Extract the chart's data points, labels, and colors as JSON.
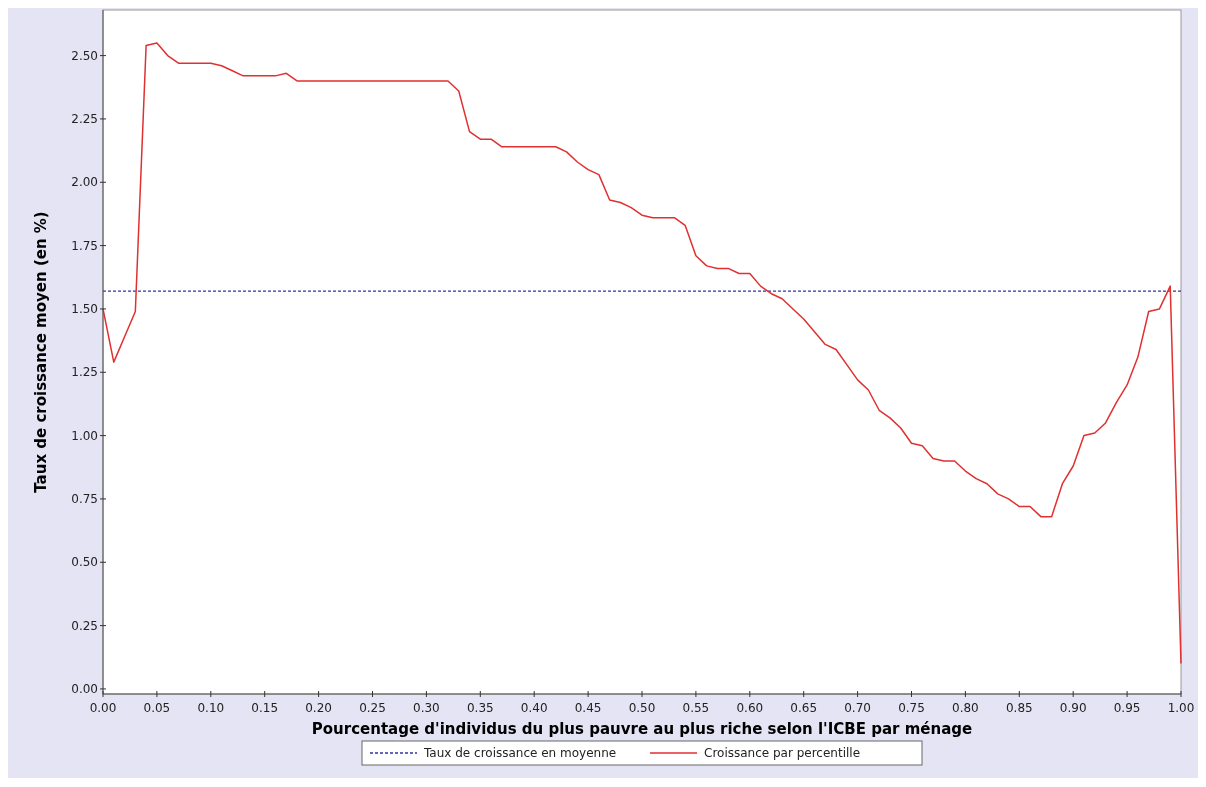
{
  "chart_data": {
    "type": "line",
    "xlabel": "Pourcentage d'individus du plus pauvre au plus riche selon l'ICBE par ménage",
    "ylabel": "Taux de croissance moyen (en %)",
    "x": [
      0,
      0.01,
      0.02,
      0.03,
      0.04,
      0.05,
      0.06,
      0.07,
      0.08,
      0.09,
      0.1,
      0.11,
      0.12,
      0.13,
      0.14,
      0.15,
      0.16,
      0.17,
      0.18,
      0.19,
      0.2,
      0.21,
      0.22,
      0.23,
      0.24,
      0.25,
      0.26,
      0.27,
      0.28,
      0.29,
      0.3,
      0.31,
      0.32,
      0.33,
      0.34,
      0.35,
      0.36,
      0.37,
      0.38,
      0.39,
      0.4,
      0.41,
      0.42,
      0.43,
      0.44,
      0.45,
      0.46,
      0.47,
      0.48,
      0.49,
      0.5,
      0.51,
      0.52,
      0.53,
      0.54,
      0.55,
      0.56,
      0.57,
      0.58,
      0.59,
      0.6,
      0.61,
      0.62,
      0.63,
      0.64,
      0.65,
      0.66,
      0.67,
      0.68,
      0.69,
      0.7,
      0.71,
      0.72,
      0.73,
      0.74,
      0.75,
      0.76,
      0.77,
      0.78,
      0.79,
      0.8,
      0.81,
      0.82,
      0.83,
      0.84,
      0.85,
      0.86,
      0.87,
      0.88,
      0.89,
      0.9,
      0.91,
      0.92,
      0.93,
      0.94,
      0.95,
      0.96,
      0.97,
      0.98,
      0.99,
      1
    ],
    "series": [
      {
        "name": "Croissance par percentille",
        "color": "#e03030",
        "values": [
          1.5,
          1.29,
          1.39,
          1.49,
          2.54,
          2.55,
          2.5,
          2.47,
          2.47,
          2.47,
          2.47,
          2.46,
          2.44,
          2.42,
          2.42,
          2.42,
          2.42,
          2.43,
          2.4,
          2.4,
          2.4,
          2.4,
          2.4,
          2.4,
          2.4,
          2.4,
          2.4,
          2.4,
          2.4,
          2.4,
          2.4,
          2.4,
          2.4,
          2.36,
          2.2,
          2.17,
          2.17,
          2.14,
          2.14,
          2.14,
          2.14,
          2.14,
          2.14,
          2.12,
          2.08,
          2.05,
          2.03,
          1.93,
          1.92,
          1.9,
          1.87,
          1.86,
          1.86,
          1.86,
          1.83,
          1.71,
          1.67,
          1.66,
          1.66,
          1.64,
          1.64,
          1.59,
          1.56,
          1.54,
          1.5,
          1.46,
          1.41,
          1.36,
          1.34,
          1.28,
          1.22,
          1.18,
          1.1,
          1.07,
          1.03,
          0.97,
          0.96,
          0.91,
          0.9,
          0.9,
          0.86,
          0.83,
          0.81,
          0.77,
          0.75,
          0.72,
          0.72,
          0.68,
          0.68,
          0.81,
          0.88,
          1.0,
          1.01,
          1.05,
          1.13,
          1.2,
          1.31,
          1.49,
          1.5,
          1.59,
          0.1
        ]
      }
    ],
    "ref_lines": [
      {
        "axis": "y",
        "value": 1.57,
        "label": "Taux de croissance en moyenne",
        "color": "#3333aa",
        "line_style": "dotted"
      }
    ],
    "xlim": [
      0,
      1
    ],
    "ylim": [
      -0.02,
      2.68
    ],
    "xticks": [
      {
        "value": 0,
        "label": "0.00"
      },
      {
        "value": 0.05,
        "label": "0.05"
      },
      {
        "value": 0.1,
        "label": "0.10"
      },
      {
        "value": 0.15,
        "label": "0.15"
      },
      {
        "value": 0.2,
        "label": "0.20"
      },
      {
        "value": 0.25,
        "label": "0.25"
      },
      {
        "value": 0.3,
        "label": "0.30"
      },
      {
        "value": 0.35,
        "label": "0.35"
      },
      {
        "value": 0.4,
        "label": "0.40"
      },
      {
        "value": 0.45,
        "label": "0.45"
      },
      {
        "value": 0.5,
        "label": "0.50"
      },
      {
        "value": 0.55,
        "label": "0.55"
      },
      {
        "value": 0.6,
        "label": "0.60"
      },
      {
        "value": 0.65,
        "label": "0.65"
      },
      {
        "value": 0.7,
        "label": "0.70"
      },
      {
        "value": 0.75,
        "label": "0.75"
      },
      {
        "value": 0.8,
        "label": "0.80"
      },
      {
        "value": 0.85,
        "label": "0.85"
      },
      {
        "value": 0.9,
        "label": "0.90"
      },
      {
        "value": 0.95,
        "label": "0.95"
      },
      {
        "value": 1,
        "label": "1.00"
      }
    ],
    "yticks": [
      {
        "value": 0,
        "label": "0.00"
      },
      {
        "value": 0.25,
        "label": "0.25"
      },
      {
        "value": 0.5,
        "label": "0.50"
      },
      {
        "value": 0.75,
        "label": "0.75"
      },
      {
        "value": 1,
        "label": "1.00"
      },
      {
        "value": 1.25,
        "label": "1.25"
      },
      {
        "value": 1.5,
        "label": "1.50"
      },
      {
        "value": 1.75,
        "label": "1.75"
      },
      {
        "value": 2,
        "label": "2.00"
      },
      {
        "value": 2.25,
        "label": "2.25"
      },
      {
        "value": 2.5,
        "label": "2.50"
      }
    ],
    "grid": false,
    "legend": "bottom",
    "marker": "none",
    "line_style": "solid"
  }
}
